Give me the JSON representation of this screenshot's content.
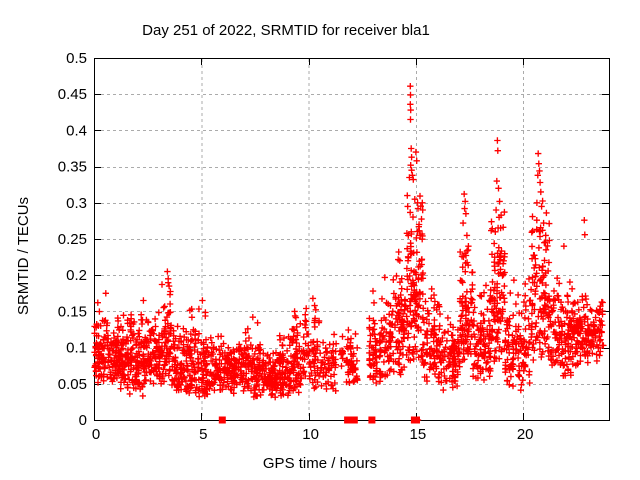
{
  "chart_data": {
    "type": "scatter",
    "title": "Day 251 of 2022, SRMTID for receiver bla1",
    "xlabel": "GPS time / hours",
    "ylabel": "SRMTID / TECUs",
    "xlim": [
      0,
      24
    ],
    "ylim": [
      0,
      0.5
    ],
    "x_ticks": [
      {
        "v": 0,
        "label": "0"
      },
      {
        "v": 5,
        "label": "5"
      },
      {
        "v": 10,
        "label": "10"
      },
      {
        "v": 15,
        "label": "15"
      },
      {
        "v": 20,
        "label": "20"
      }
    ],
    "y_ticks": [
      {
        "v": 0,
        "label": "0"
      },
      {
        "v": 0.05,
        "label": "0.05"
      },
      {
        "v": 0.1,
        "label": "0.1"
      },
      {
        "v": 0.15,
        "label": "0.15"
      },
      {
        "v": 0.2,
        "label": "0.2"
      },
      {
        "v": 0.25,
        "label": "0.25"
      },
      {
        "v": 0.3,
        "label": "0.3"
      },
      {
        "v": 0.35,
        "label": "0.35"
      },
      {
        "v": 0.4,
        "label": "0.4"
      },
      {
        "v": 0.45,
        "label": "0.45"
      },
      {
        "v": 0.5,
        "label": "0.5"
      }
    ],
    "grid": {
      "x": [
        5,
        10,
        15,
        20
      ],
      "y": [
        0.05,
        0.1,
        0.15,
        0.2,
        0.25,
        0.3,
        0.35,
        0.4,
        0.45
      ],
      "style": "dotted",
      "color": "#ababab"
    },
    "marker": {
      "type": "plus",
      "color": "#ff0000",
      "size": 7
    },
    "legend": null,
    "series": {
      "name": "SRMTID",
      "seed": 123,
      "segments": [
        {
          "x0": 0.0,
          "x1": 0.7,
          "n": 90,
          "yLo": 0.05,
          "yHi": 0.165,
          "bias": 1.3
        },
        {
          "x0": 0.7,
          "x1": 1.5,
          "n": 110,
          "yLo": 0.04,
          "yHi": 0.155,
          "bias": 1.35
        },
        {
          "x0": 1.5,
          "x1": 2.3,
          "n": 105,
          "yLo": 0.03,
          "yHi": 0.16,
          "bias": 1.35
        },
        {
          "x0": 2.3,
          "x1": 3.1,
          "n": 100,
          "yLo": 0.045,
          "yHi": 0.155,
          "bias": 1.3
        },
        {
          "x0": 3.1,
          "x1": 3.6,
          "n": 65,
          "yLo": 0.05,
          "yHi": 0.2,
          "bias": 1.5
        },
        {
          "x0": 3.6,
          "x1": 4.4,
          "n": 90,
          "yLo": 0.035,
          "yHi": 0.15,
          "bias": 1.4
        },
        {
          "x0": 4.4,
          "x1": 5.2,
          "n": 90,
          "yLo": 0.03,
          "yHi": 0.165,
          "bias": 1.5
        },
        {
          "x0": 5.2,
          "x1": 6.0,
          "n": 85,
          "yLo": 0.03,
          "yHi": 0.125,
          "bias": 1.3
        },
        {
          "x0": 6.0,
          "x1": 7.0,
          "n": 110,
          "yLo": 0.035,
          "yHi": 0.12,
          "bias": 1.3
        },
        {
          "x0": 7.0,
          "x1": 7.8,
          "n": 90,
          "yLo": 0.03,
          "yHi": 0.135,
          "bias": 1.4
        },
        {
          "x0": 7.8,
          "x1": 8.6,
          "n": 90,
          "yLo": 0.025,
          "yHi": 0.105,
          "bias": 1.3
        },
        {
          "x0": 8.6,
          "x1": 9.2,
          "n": 70,
          "yLo": 0.03,
          "yHi": 0.125,
          "bias": 1.35
        },
        {
          "x0": 9.2,
          "x1": 9.8,
          "n": 70,
          "yLo": 0.03,
          "yHi": 0.15,
          "bias": 1.4
        },
        {
          "x0": 9.8,
          "x1": 10.5,
          "n": 60,
          "yLo": 0.04,
          "yHi": 0.165,
          "bias": 1.4
        },
        {
          "x0": 10.5,
          "x1": 11.3,
          "n": 55,
          "yLo": 0.04,
          "yHi": 0.13,
          "bias": 1.3
        },
        {
          "x0": 11.45,
          "x1": 11.6,
          "n": 10,
          "yLo": 0.06,
          "yHi": 0.125,
          "bias": 1.2
        },
        {
          "x0": 11.75,
          "x1": 12.3,
          "n": 55,
          "yLo": 0.04,
          "yHi": 0.135,
          "bias": 1.3
        },
        {
          "x0": 12.8,
          "x1": 13.2,
          "n": 50,
          "yLo": 0.05,
          "yHi": 0.175,
          "bias": 1.4
        },
        {
          "x0": 13.3,
          "x1": 14.0,
          "n": 70,
          "yLo": 0.05,
          "yHi": 0.195,
          "bias": 1.4
        },
        {
          "x0": 14.0,
          "x1": 14.55,
          "n": 70,
          "yLo": 0.06,
          "yHi": 0.24,
          "bias": 1.5
        },
        {
          "x0": 14.55,
          "x1": 15.35,
          "n": 130,
          "yLo": 0.08,
          "yHi": 0.33,
          "bias": 1.5
        },
        {
          "x0": 15.35,
          "x1": 16.2,
          "n": 95,
          "yLo": 0.05,
          "yHi": 0.19,
          "bias": 1.4
        },
        {
          "x0": 16.2,
          "x1": 17.05,
          "n": 80,
          "yLo": 0.04,
          "yHi": 0.155,
          "bias": 1.35
        },
        {
          "x0": 17.05,
          "x1": 17.65,
          "n": 90,
          "yLo": 0.08,
          "yHi": 0.29,
          "bias": 1.5
        },
        {
          "x0": 17.65,
          "x1": 18.5,
          "n": 95,
          "yLo": 0.05,
          "yHi": 0.195,
          "bias": 1.4
        },
        {
          "x0": 18.5,
          "x1": 19.15,
          "n": 100,
          "yLo": 0.08,
          "yHi": 0.31,
          "bias": 1.5
        },
        {
          "x0": 19.15,
          "x1": 20.35,
          "n": 120,
          "yLo": 0.04,
          "yHi": 0.2,
          "bias": 1.35
        },
        {
          "x0": 20.35,
          "x1": 21.25,
          "n": 115,
          "yLo": 0.08,
          "yHi": 0.33,
          "bias": 1.45
        },
        {
          "x0": 21.25,
          "x1": 22.3,
          "n": 120,
          "yLo": 0.06,
          "yHi": 0.205,
          "bias": 1.35
        },
        {
          "x0": 22.3,
          "x1": 23.1,
          "n": 95,
          "yLo": 0.07,
          "yHi": 0.185,
          "bias": 1.3
        },
        {
          "x0": 23.1,
          "x1": 23.75,
          "n": 60,
          "yLo": 0.08,
          "yHi": 0.17,
          "bias": 1.3
        }
      ],
      "outliers": [
        [
          0.55,
          0.175
        ],
        [
          2.3,
          0.165
        ],
        [
          3.42,
          0.205
        ],
        [
          3.46,
          0.195
        ],
        [
          3.5,
          0.185
        ],
        [
          5.05,
          0.165
        ],
        [
          7.4,
          0.142
        ],
        [
          9.35,
          0.15
        ],
        [
          10.2,
          0.168
        ],
        [
          10.28,
          0.158
        ],
        [
          13.0,
          0.178
        ],
        [
          13.55,
          0.197
        ],
        [
          14.2,
          0.232
        ],
        [
          14.25,
          0.22
        ],
        [
          14.74,
          0.461
        ],
        [
          14.75,
          0.449
        ],
        [
          14.74,
          0.436
        ],
        [
          14.76,
          0.428
        ],
        [
          14.75,
          0.415
        ],
        [
          14.78,
          0.375
        ],
        [
          14.8,
          0.363
        ],
        [
          14.76,
          0.352
        ],
        [
          14.8,
          0.345
        ],
        [
          14.84,
          0.338
        ],
        [
          14.88,
          0.332
        ],
        [
          14.7,
          0.335
        ],
        [
          15.0,
          0.37
        ],
        [
          15.04,
          0.358
        ],
        [
          15.08,
          0.3
        ],
        [
          15.1,
          0.292
        ],
        [
          14.95,
          0.305
        ],
        [
          14.6,
          0.31
        ],
        [
          14.62,
          0.295
        ],
        [
          15.15,
          0.27
        ],
        [
          15.2,
          0.255
        ],
        [
          15.3,
          0.3
        ],
        [
          15.32,
          0.29
        ],
        [
          15.1,
          0.0
        ],
        [
          17.25,
          0.312
        ],
        [
          17.3,
          0.302
        ],
        [
          17.27,
          0.292
        ],
        [
          17.33,
          0.285
        ],
        [
          17.2,
          0.272
        ],
        [
          17.38,
          0.255
        ],
        [
          17.45,
          0.24
        ],
        [
          18.8,
          0.386
        ],
        [
          18.82,
          0.372
        ],
        [
          18.77,
          0.33
        ],
        [
          18.85,
          0.32
        ],
        [
          18.9,
          0.302
        ],
        [
          18.74,
          0.29
        ],
        [
          18.88,
          0.28
        ],
        [
          18.95,
          0.265
        ],
        [
          18.7,
          0.26
        ],
        [
          20.7,
          0.368
        ],
        [
          20.73,
          0.354
        ],
        [
          20.76,
          0.344
        ],
        [
          20.68,
          0.338
        ],
        [
          20.79,
          0.328
        ],
        [
          20.82,
          0.315
        ],
        [
          20.64,
          0.3
        ],
        [
          20.86,
          0.295
        ],
        [
          20.95,
          0.272
        ],
        [
          20.9,
          0.262
        ],
        [
          21.05,
          0.255
        ],
        [
          21.9,
          0.24
        ],
        [
          22.85,
          0.276
        ],
        [
          22.87,
          0.256
        ]
      ],
      "baseline_squares": [
        5.98,
        11.82,
        11.92,
        12.03,
        12.13,
        12.95,
        14.93,
        15.03
      ]
    }
  }
}
